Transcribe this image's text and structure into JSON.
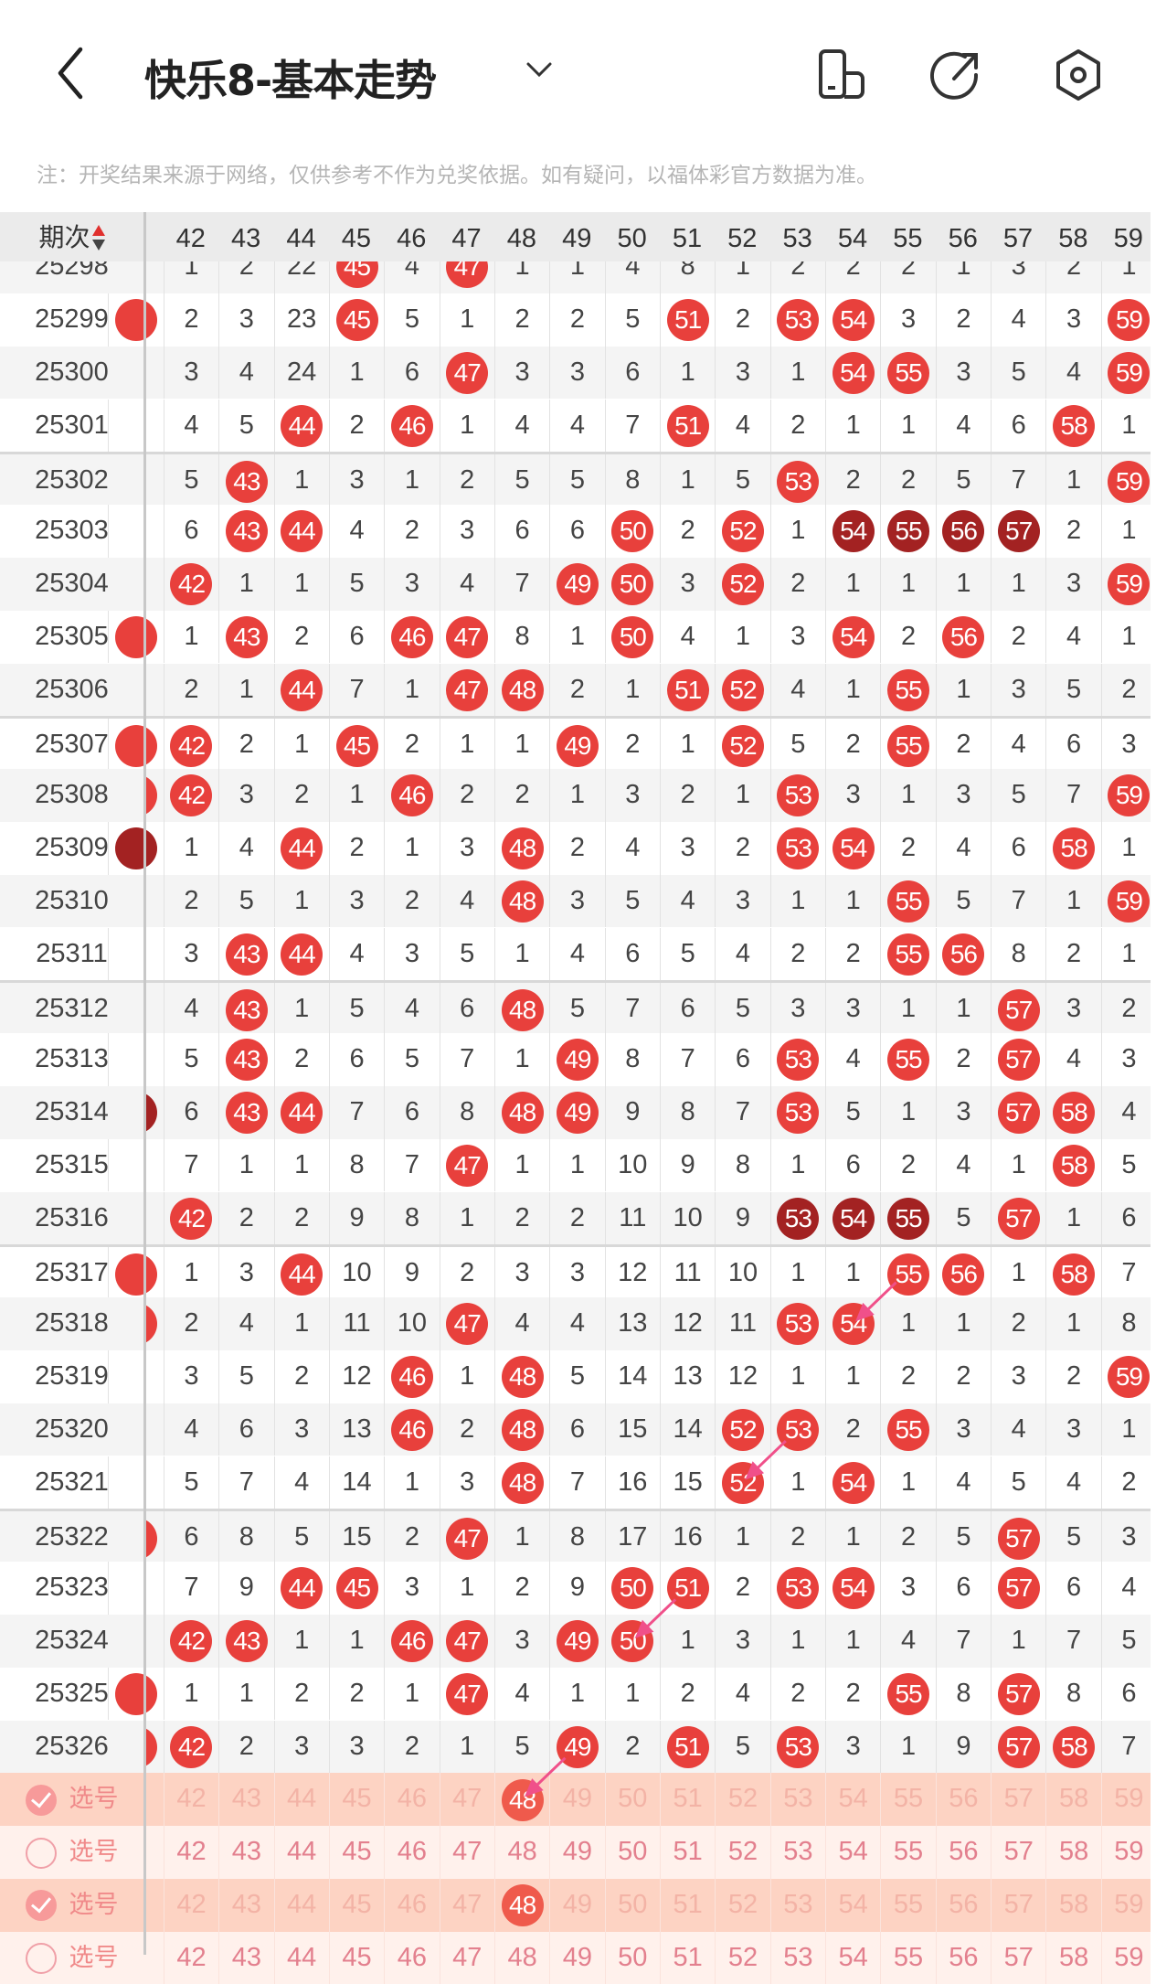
{
  "header": {
    "title": "快乐8-基本走势",
    "icons": [
      "back-chevron-icon",
      "dropdown-chevron-icon",
      "phone-rotate-icon",
      "share-icon",
      "settings-hexagon-icon"
    ]
  },
  "note": "注：开奖结果来源于网络，仅供参考不作为兑奖依据。如有疑问，以福体彩官方数据为准。",
  "table": {
    "first_header": "期次",
    "columns": [
      "42",
      "43",
      "44",
      "45",
      "46",
      "47",
      "48",
      "49",
      "50",
      "51",
      "52",
      "53",
      "54",
      "55",
      "56",
      "57",
      "58",
      "59"
    ],
    "colors": {
      "hit": "#e8403c",
      "consecutive": "#a32222",
      "arrow": "#f0508a"
    },
    "rows": [
      {
        "issue": "25298",
        "left": "",
        "cells": [
          "1",
          "2",
          "22",
          "45",
          "4",
          "47",
          "1",
          "1",
          "4",
          "8",
          "1",
          "2",
          "2",
          "2",
          "1",
          "3",
          "2",
          "1"
        ],
        "dark": []
      },
      {
        "issue": "25299",
        "left": "hit",
        "cells": [
          "2",
          "3",
          "23",
          "45",
          "5",
          "1",
          "2",
          "2",
          "5",
          "51",
          "2",
          "53",
          "54",
          "3",
          "2",
          "4",
          "3",
          "59"
        ],
        "dark": []
      },
      {
        "issue": "25300",
        "left": "",
        "cells": [
          "3",
          "4",
          "24",
          "1",
          "6",
          "47",
          "3",
          "3",
          "6",
          "1",
          "3",
          "1",
          "54",
          "55",
          "3",
          "5",
          "4",
          "59"
        ],
        "dark": []
      },
      {
        "issue": "25301",
        "left": "",
        "cells": [
          "4",
          "5",
          "44",
          "2",
          "46",
          "1",
          "4",
          "4",
          "7",
          "51",
          "4",
          "2",
          "1",
          "1",
          "4",
          "6",
          "58",
          "1"
        ],
        "dark": []
      },
      {
        "issue": "25302",
        "left": "",
        "cells": [
          "5",
          "43",
          "1",
          "3",
          "1",
          "2",
          "5",
          "5",
          "8",
          "1",
          "5",
          "53",
          "2",
          "2",
          "5",
          "7",
          "1",
          "59"
        ],
        "dark": []
      },
      {
        "issue": "25303",
        "left": "",
        "cells": [
          "6",
          "43",
          "44",
          "4",
          "2",
          "3",
          "6",
          "6",
          "50",
          "2",
          "52",
          "1",
          "54",
          "55",
          "56",
          "57",
          "2",
          "1"
        ],
        "dark": [
          "54",
          "55",
          "56",
          "57"
        ]
      },
      {
        "issue": "25304",
        "left": "",
        "cells": [
          "42",
          "1",
          "1",
          "5",
          "3",
          "4",
          "7",
          "49",
          "50",
          "3",
          "52",
          "2",
          "1",
          "1",
          "1",
          "1",
          "3",
          "59"
        ],
        "dark": []
      },
      {
        "issue": "25305",
        "left": "hit",
        "cells": [
          "1",
          "43",
          "2",
          "6",
          "46",
          "47",
          "8",
          "1",
          "50",
          "4",
          "1",
          "3",
          "54",
          "2",
          "56",
          "2",
          "4",
          "1"
        ],
        "dark": []
      },
      {
        "issue": "25306",
        "left": "",
        "cells": [
          "2",
          "1",
          "44",
          "7",
          "1",
          "47",
          "48",
          "2",
          "1",
          "51",
          "52",
          "4",
          "1",
          "55",
          "1",
          "3",
          "5",
          "2"
        ],
        "dark": []
      },
      {
        "issue": "25307",
        "left": "hit",
        "cells": [
          "42",
          "2",
          "1",
          "45",
          "2",
          "1",
          "1",
          "49",
          "2",
          "1",
          "52",
          "5",
          "2",
          "55",
          "2",
          "4",
          "6",
          "3"
        ],
        "dark": []
      },
      {
        "issue": "25308",
        "left": "hit",
        "cells": [
          "42",
          "3",
          "2",
          "1",
          "46",
          "2",
          "2",
          "1",
          "3",
          "2",
          "1",
          "53",
          "3",
          "1",
          "3",
          "5",
          "7",
          "59"
        ],
        "dark": []
      },
      {
        "issue": "25309",
        "left": "dark",
        "cells": [
          "1",
          "4",
          "44",
          "2",
          "1",
          "3",
          "48",
          "2",
          "4",
          "3",
          "2",
          "53",
          "54",
          "2",
          "4",
          "6",
          "58",
          "1"
        ],
        "dark": []
      },
      {
        "issue": "25310",
        "left": "",
        "cells": [
          "2",
          "5",
          "1",
          "3",
          "2",
          "4",
          "48",
          "3",
          "5",
          "4",
          "3",
          "1",
          "1",
          "55",
          "5",
          "7",
          "1",
          "59"
        ],
        "dark": []
      },
      {
        "issue": "25311",
        "left": "",
        "cells": [
          "3",
          "43",
          "44",
          "4",
          "3",
          "5",
          "1",
          "4",
          "6",
          "5",
          "4",
          "2",
          "2",
          "55",
          "56",
          "8",
          "2",
          "1"
        ],
        "dark": []
      },
      {
        "issue": "25312",
        "left": "",
        "cells": [
          "4",
          "43",
          "1",
          "5",
          "4",
          "6",
          "48",
          "5",
          "7",
          "6",
          "5",
          "3",
          "3",
          "1",
          "1",
          "57",
          "3",
          "2"
        ],
        "dark": []
      },
      {
        "issue": "25313",
        "left": "",
        "cells": [
          "5",
          "43",
          "2",
          "6",
          "5",
          "7",
          "1",
          "49",
          "8",
          "7",
          "6",
          "53",
          "4",
          "55",
          "2",
          "57",
          "4",
          "3"
        ],
        "dark": []
      },
      {
        "issue": "25314",
        "left": "dark",
        "cells": [
          "6",
          "43",
          "44",
          "7",
          "6",
          "8",
          "48",
          "49",
          "9",
          "8",
          "7",
          "53",
          "5",
          "1",
          "3",
          "57",
          "58",
          "4"
        ],
        "dark": []
      },
      {
        "issue": "25315",
        "left": "",
        "cells": [
          "7",
          "1",
          "1",
          "8",
          "7",
          "47",
          "1",
          "1",
          "10",
          "9",
          "8",
          "1",
          "6",
          "2",
          "4",
          "1",
          "58",
          "5"
        ],
        "dark": []
      },
      {
        "issue": "25316",
        "left": "",
        "cells": [
          "42",
          "2",
          "2",
          "9",
          "8",
          "1",
          "2",
          "2",
          "11",
          "10",
          "9",
          "53",
          "54",
          "55",
          "5",
          "57",
          "1",
          "6"
        ],
        "dark": [
          "53",
          "54",
          "55"
        ]
      },
      {
        "issue": "25317",
        "left": "hit",
        "cells": [
          "1",
          "3",
          "44",
          "10",
          "9",
          "2",
          "3",
          "3",
          "12",
          "11",
          "10",
          "1",
          "1",
          "55",
          "56",
          "1",
          "58",
          "7"
        ],
        "dark": []
      },
      {
        "issue": "25318",
        "left": "hit",
        "cells": [
          "2",
          "4",
          "1",
          "11",
          "10",
          "47",
          "4",
          "4",
          "13",
          "12",
          "11",
          "53",
          "54",
          "1",
          "1",
          "2",
          "1",
          "8"
        ],
        "dark": []
      },
      {
        "issue": "25319",
        "left": "",
        "cells": [
          "3",
          "5",
          "2",
          "12",
          "46",
          "1",
          "48",
          "5",
          "14",
          "13",
          "12",
          "1",
          "1",
          "2",
          "2",
          "3",
          "2",
          "59"
        ],
        "dark": []
      },
      {
        "issue": "25320",
        "left": "",
        "cells": [
          "4",
          "6",
          "3",
          "13",
          "46",
          "2",
          "48",
          "6",
          "15",
          "14",
          "52",
          "53",
          "2",
          "55",
          "3",
          "4",
          "3",
          "1"
        ],
        "dark": []
      },
      {
        "issue": "25321",
        "left": "",
        "cells": [
          "5",
          "7",
          "4",
          "14",
          "1",
          "3",
          "48",
          "7",
          "16",
          "15",
          "52",
          "1",
          "54",
          "1",
          "4",
          "5",
          "4",
          "2"
        ],
        "dark": []
      },
      {
        "issue": "25322",
        "left": "hit",
        "cells": [
          "6",
          "8",
          "5",
          "15",
          "2",
          "47",
          "1",
          "8",
          "17",
          "16",
          "1",
          "2",
          "1",
          "2",
          "5",
          "57",
          "5",
          "3"
        ],
        "dark": []
      },
      {
        "issue": "25323",
        "left": "",
        "cells": [
          "7",
          "9",
          "44",
          "45",
          "3",
          "1",
          "2",
          "9",
          "50",
          "51",
          "2",
          "53",
          "54",
          "3",
          "6",
          "57",
          "6",
          "4"
        ],
        "dark": []
      },
      {
        "issue": "25324",
        "left": "",
        "cells": [
          "42",
          "43",
          "1",
          "1",
          "46",
          "47",
          "3",
          "49",
          "50",
          "1",
          "3",
          "1",
          "1",
          "4",
          "7",
          "1",
          "7",
          "5"
        ],
        "dark": []
      },
      {
        "issue": "25325",
        "left": "hit",
        "cells": [
          "1",
          "1",
          "2",
          "2",
          "1",
          "47",
          "4",
          "1",
          "1",
          "2",
          "4",
          "2",
          "2",
          "55",
          "8",
          "57",
          "8",
          "6"
        ],
        "dark": []
      },
      {
        "issue": "25326",
        "left": "hit",
        "cells": [
          "42",
          "2",
          "3",
          "3",
          "2",
          "1",
          "5",
          "49",
          "2",
          "51",
          "5",
          "53",
          "3",
          "1",
          "9",
          "57",
          "58",
          "7"
        ],
        "dark": []
      }
    ],
    "select_rows": [
      {
        "label": "选号",
        "checked": true,
        "picked": [
          "48"
        ]
      },
      {
        "label": "选号",
        "checked": false,
        "picked": []
      },
      {
        "label": "选号",
        "checked": true,
        "picked": [
          "48"
        ]
      },
      {
        "label": "选号",
        "checked": false,
        "picked": []
      }
    ],
    "arrows": [
      {
        "from": {
          "issue": "25317",
          "col": "55"
        },
        "to": {
          "issue": "25318",
          "col": "54"
        }
      },
      {
        "from": {
          "issue": "25320",
          "col": "53"
        },
        "to": {
          "issue": "25321",
          "col": "52"
        }
      },
      {
        "from": {
          "issue": "25323",
          "col": "51"
        },
        "to": {
          "issue": "25324",
          "col": "50"
        }
      },
      {
        "from": {
          "issue": "25326",
          "col": "49"
        },
        "to": {
          "select": 0,
          "col": "48"
        }
      }
    ]
  }
}
